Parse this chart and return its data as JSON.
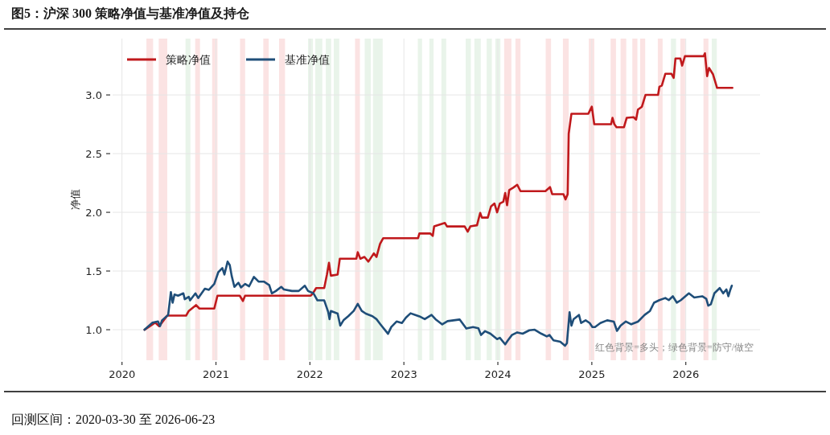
{
  "chart_data": {
    "type": "line",
    "title": "图5：沪深 300 策略净值与基准净值及持仓",
    "ylabel": "净值",
    "annotations": [
      "红色背景=多头；绿色背景=防守/做空",
      "回测区间：2020-03-30  至 2026-06-23"
    ],
    "xlim": [
      2019.9,
      2026.79
    ],
    "ylim": [
      0.74,
      3.48
    ],
    "xticks": [
      2020,
      2021,
      2022,
      2023,
      2024,
      2025,
      2026
    ],
    "yticks": [
      {
        "value": 1,
        "label": "1.0"
      },
      {
        "value": 1.5,
        "label": "1.5"
      },
      {
        "value": 2,
        "label": "2.0"
      },
      {
        "value": 2.5,
        "label": "2.5"
      },
      {
        "value": 3,
        "label": "3.0"
      }
    ],
    "grid": true,
    "legend": "top left",
    "series": [
      {
        "name": "策略净值",
        "color": "#c0191c",
        "x": [
          2020.24,
          2020.354,
          2020.396,
          2020.482,
          2020.682,
          2020.711,
          2020.788,
          2020.824,
          2020.982,
          2021.016,
          2021.253,
          2021.287,
          2021.31,
          2022.009,
          2022.032,
          2022.066,
          2022.152,
          2022.181,
          2022.203,
          2022.223,
          2022.295,
          2022.318,
          2022.494,
          2022.509,
          2022.537,
          2022.58,
          2022.622,
          2022.68,
          2022.708,
          2022.746,
          2022.78,
          2023.151,
          2023.165,
          2023.279,
          2023.307,
          2023.322,
          2023.436,
          2023.459,
          2023.647,
          2023.679,
          2023.707,
          2023.778,
          2023.812,
          2023.83,
          2023.893,
          2023.927,
          2023.964,
          2023.992,
          2024.021,
          2024.058,
          2024.078,
          2024.098,
          2024.121,
          2024.164,
          2024.206,
          2024.241,
          2024.506,
          2024.555,
          2024.578,
          2024.698,
          2024.72,
          2024.743,
          2024.754,
          2024.783,
          2024.963,
          2025.0,
          2025.026,
          2025.205,
          2025.22,
          2025.24,
          2025.263,
          2025.342,
          2025.371,
          2025.445,
          2025.471,
          2025.491,
          2025.533,
          2025.571,
          2025.705,
          2025.719,
          2025.745,
          2025.782,
          2025.848,
          2025.871,
          2025.89,
          2025.942,
          2025.961,
          2025.991,
          2026.19,
          2026.204,
          2026.227,
          2026.247,
          2026.29,
          2026.333,
          2026.496
        ],
        "values": [
          1.0,
          1.06,
          1.03,
          1.12,
          1.12,
          1.16,
          1.21,
          1.18,
          1.18,
          1.29,
          1.29,
          1.245,
          1.29,
          1.29,
          1.31,
          1.355,
          1.355,
          1.47,
          1.57,
          1.46,
          1.47,
          1.605,
          1.605,
          1.66,
          1.605,
          1.62,
          1.58,
          1.65,
          1.62,
          1.73,
          1.78,
          1.78,
          1.82,
          1.82,
          1.8,
          1.88,
          1.91,
          1.88,
          1.88,
          1.835,
          1.88,
          1.89,
          1.995,
          1.955,
          1.955,
          2.05,
          2.075,
          2.0,
          2.075,
          2.09,
          2.165,
          2.06,
          2.19,
          2.21,
          2.235,
          2.18,
          2.18,
          2.215,
          2.155,
          2.155,
          2.11,
          2.155,
          2.67,
          2.84,
          2.84,
          2.9,
          2.75,
          2.75,
          2.805,
          2.75,
          2.725,
          2.725,
          2.805,
          2.81,
          2.79,
          2.875,
          2.9,
          3.0,
          3.0,
          3.07,
          3.08,
          3.18,
          3.18,
          3.145,
          3.31,
          3.31,
          3.25,
          3.33,
          3.33,
          3.355,
          3.16,
          3.23,
          3.175,
          3.06,
          3.06
        ]
      },
      {
        "name": "基准净值",
        "color": "#1f4e79",
        "x": [
          2020.24,
          2020.325,
          2020.383,
          2020.405,
          2020.426,
          2020.491,
          2020.52,
          2020.539,
          2020.559,
          2020.597,
          2020.653,
          2020.668,
          2020.711,
          2020.725,
          2020.782,
          2020.811,
          2020.882,
          2020.925,
          2020.982,
          2021.025,
          2021.068,
          2021.09,
          2021.124,
          2021.147,
          2021.167,
          2021.196,
          2021.239,
          2021.267,
          2021.31,
          2021.353,
          2021.404,
          2021.453,
          2021.509,
          2021.567,
          2021.595,
          2021.638,
          2021.695,
          2021.723,
          2021.809,
          2021.881,
          2021.946,
          2021.98,
          2022.038,
          2022.08,
          2022.152,
          2022.195,
          2022.209,
          2022.223,
          2022.295,
          2022.323,
          2022.357,
          2022.408,
          2022.466,
          2022.509,
          2022.551,
          2022.594,
          2022.665,
          2022.708,
          2022.751,
          2022.831,
          2022.866,
          2022.922,
          2022.979,
          2023.022,
          2023.071,
          2023.122,
          2023.165,
          2023.222,
          2023.294,
          2023.336,
          2023.408,
          2023.465,
          2023.593,
          2023.664,
          2023.736,
          2023.793,
          2023.821,
          2023.864,
          2023.921,
          2023.992,
          2024.021,
          2024.078,
          2024.107,
          2024.15,
          2024.206,
          2024.264,
          2024.335,
          2024.392,
          2024.463,
          2024.521,
          2024.549,
          2024.592,
          2024.664,
          2024.715,
          2024.735,
          2024.763,
          2024.783,
          2024.806,
          2024.863,
          2024.886,
          2024.934,
          2024.977,
          2025.006,
          2025.034,
          2025.091,
          2025.163,
          2025.234,
          2025.268,
          2025.306,
          2025.362,
          2025.42,
          2025.491,
          2025.562,
          2025.619,
          2025.662,
          2025.719,
          2025.782,
          2025.819,
          2025.862,
          2025.905,
          2025.948,
          2026.033,
          2026.09,
          2026.175,
          2026.218,
          2026.239,
          2026.267,
          2026.304,
          2026.361,
          2026.398,
          2026.432,
          2026.453,
          2026.475,
          2026.49
        ],
        "values": [
          1.0,
          1.06,
          1.07,
          1.03,
          1.08,
          1.125,
          1.32,
          1.23,
          1.3,
          1.29,
          1.31,
          1.26,
          1.28,
          1.25,
          1.31,
          1.27,
          1.35,
          1.34,
          1.39,
          1.49,
          1.525,
          1.47,
          1.58,
          1.55,
          1.46,
          1.365,
          1.4,
          1.36,
          1.39,
          1.37,
          1.45,
          1.41,
          1.41,
          1.38,
          1.31,
          1.33,
          1.365,
          1.343,
          1.33,
          1.33,
          1.375,
          1.33,
          1.31,
          1.25,
          1.25,
          1.15,
          1.09,
          1.16,
          1.137,
          1.035,
          1.08,
          1.115,
          1.16,
          1.22,
          1.16,
          1.137,
          1.115,
          1.09,
          1.045,
          0.965,
          1.023,
          1.07,
          1.057,
          1.103,
          1.14,
          1.126,
          1.114,
          1.09,
          1.126,
          1.09,
          1.045,
          1.073,
          1.087,
          1.01,
          1.023,
          1.012,
          0.955,
          0.988,
          0.966,
          0.92,
          0.931,
          0.875,
          0.909,
          0.955,
          0.977,
          0.966,
          0.995,
          1.0,
          0.966,
          0.943,
          0.955,
          0.91,
          0.897,
          0.863,
          0.885,
          1.149,
          1.034,
          1.09,
          1.126,
          1.057,
          1.08,
          1.057,
          1.023,
          1.023,
          1.057,
          1.08,
          1.069,
          0.99,
          1.034,
          1.07,
          1.046,
          1.069,
          1.126,
          1.16,
          1.23,
          1.252,
          1.27,
          1.252,
          1.285,
          1.23,
          1.252,
          1.31,
          1.274,
          1.285,
          1.263,
          1.205,
          1.217,
          1.31,
          1.355,
          1.31,
          1.343,
          1.285,
          1.343,
          1.375
        ]
      }
    ],
    "bands": [
      {
        "axis": "x",
        "from": 2020.26,
        "to": 2020.331,
        "color": "#fbe3e3"
      },
      {
        "axis": "x",
        "from": 2020.391,
        "to": 2020.482,
        "color": "#fbe3e3"
      },
      {
        "axis": "x",
        "from": 2020.676,
        "to": 2020.728,
        "color": "#e9f4ea"
      },
      {
        "axis": "x",
        "from": 2020.779,
        "to": 2020.83,
        "color": "#fbe3e3"
      },
      {
        "axis": "x",
        "from": 2020.959,
        "to": 2021.016,
        "color": "#fbe3e3"
      },
      {
        "axis": "x",
        "from": 2021.256,
        "to": 2021.31,
        "color": "#fbe3e3"
      },
      {
        "axis": "x",
        "from": 2021.504,
        "to": 2021.561,
        "color": "#fbe3e3"
      },
      {
        "axis": "x",
        "from": 2021.672,
        "to": 2021.735,
        "color": "#fbe3e3"
      },
      {
        "axis": "x",
        "from": 2021.98,
        "to": 2022.032,
        "color": "#e9f4ea"
      },
      {
        "axis": "x",
        "from": 2022.057,
        "to": 2022.132,
        "color": "#e9f4ea"
      },
      {
        "axis": "x",
        "from": 2022.169,
        "to": 2022.226,
        "color": "#e9f4ea"
      },
      {
        "axis": "x",
        "from": 2022.254,
        "to": 2022.312,
        "color": "#e9f4ea"
      },
      {
        "axis": "x",
        "from": 2022.48,
        "to": 2022.532,
        "color": "#fbe3e3"
      },
      {
        "axis": "x",
        "from": 2022.583,
        "to": 2022.648,
        "color": "#e9f4ea"
      },
      {
        "axis": "x",
        "from": 2022.671,
        "to": 2022.774,
        "color": "#e9f4ea"
      },
      {
        "axis": "x",
        "from": 2023.148,
        "to": 2023.193,
        "color": "#e9f4ea"
      },
      {
        "axis": "x",
        "from": 2023.271,
        "to": 2023.316,
        "color": "#e9f4ea"
      },
      {
        "axis": "x",
        "from": 2023.399,
        "to": 2023.45,
        "color": "#e9f4ea"
      },
      {
        "axis": "x",
        "from": 2023.658,
        "to": 2023.713,
        "color": "#e9f4ea"
      },
      {
        "axis": "x",
        "from": 2023.75,
        "to": 2023.818,
        "color": "#e9f4ea"
      },
      {
        "axis": "x",
        "from": 2023.881,
        "to": 2023.936,
        "color": "#e9f4ea"
      },
      {
        "axis": "x",
        "from": 2023.973,
        "to": 2024.027,
        "color": "#e9f4ea"
      },
      {
        "axis": "x",
        "from": 2024.067,
        "to": 2024.144,
        "color": "#fbe3e3"
      },
      {
        "axis": "x",
        "from": 2024.187,
        "to": 2024.241,
        "color": "#fbe3e3"
      },
      {
        "axis": "x",
        "from": 2024.509,
        "to": 2024.566,
        "color": "#fbe3e3"
      },
      {
        "axis": "x",
        "from": 2024.692,
        "to": 2024.754,
        "color": "#fbe3e3"
      },
      {
        "axis": "x",
        "from": 2024.968,
        "to": 2025.026,
        "color": "#fbe3e3"
      },
      {
        "axis": "x",
        "from": 2025.2,
        "to": 2025.257,
        "color": "#fbe3e3"
      },
      {
        "axis": "x",
        "from": 2025.306,
        "to": 2025.366,
        "color": "#fbe3e3"
      },
      {
        "axis": "x",
        "from": 2025.431,
        "to": 2025.485,
        "color": "#fbe3e3"
      },
      {
        "axis": "x",
        "from": 2025.514,
        "to": 2025.568,
        "color": "#fbe3e3"
      },
      {
        "axis": "x",
        "from": 2025.702,
        "to": 2025.753,
        "color": "#fbe3e3"
      },
      {
        "axis": "x",
        "from": 2025.842,
        "to": 2025.896,
        "color": "#e9f4ea"
      },
      {
        "axis": "x",
        "from": 2025.942,
        "to": 2025.993,
        "color": "#fbe3e3"
      },
      {
        "axis": "x",
        "from": 2026.188,
        "to": 2026.241,
        "color": "#fbe3e3"
      },
      {
        "axis": "x",
        "from": 2026.276,
        "to": 2026.33,
        "color": "#e9f4ea"
      }
    ]
  }
}
